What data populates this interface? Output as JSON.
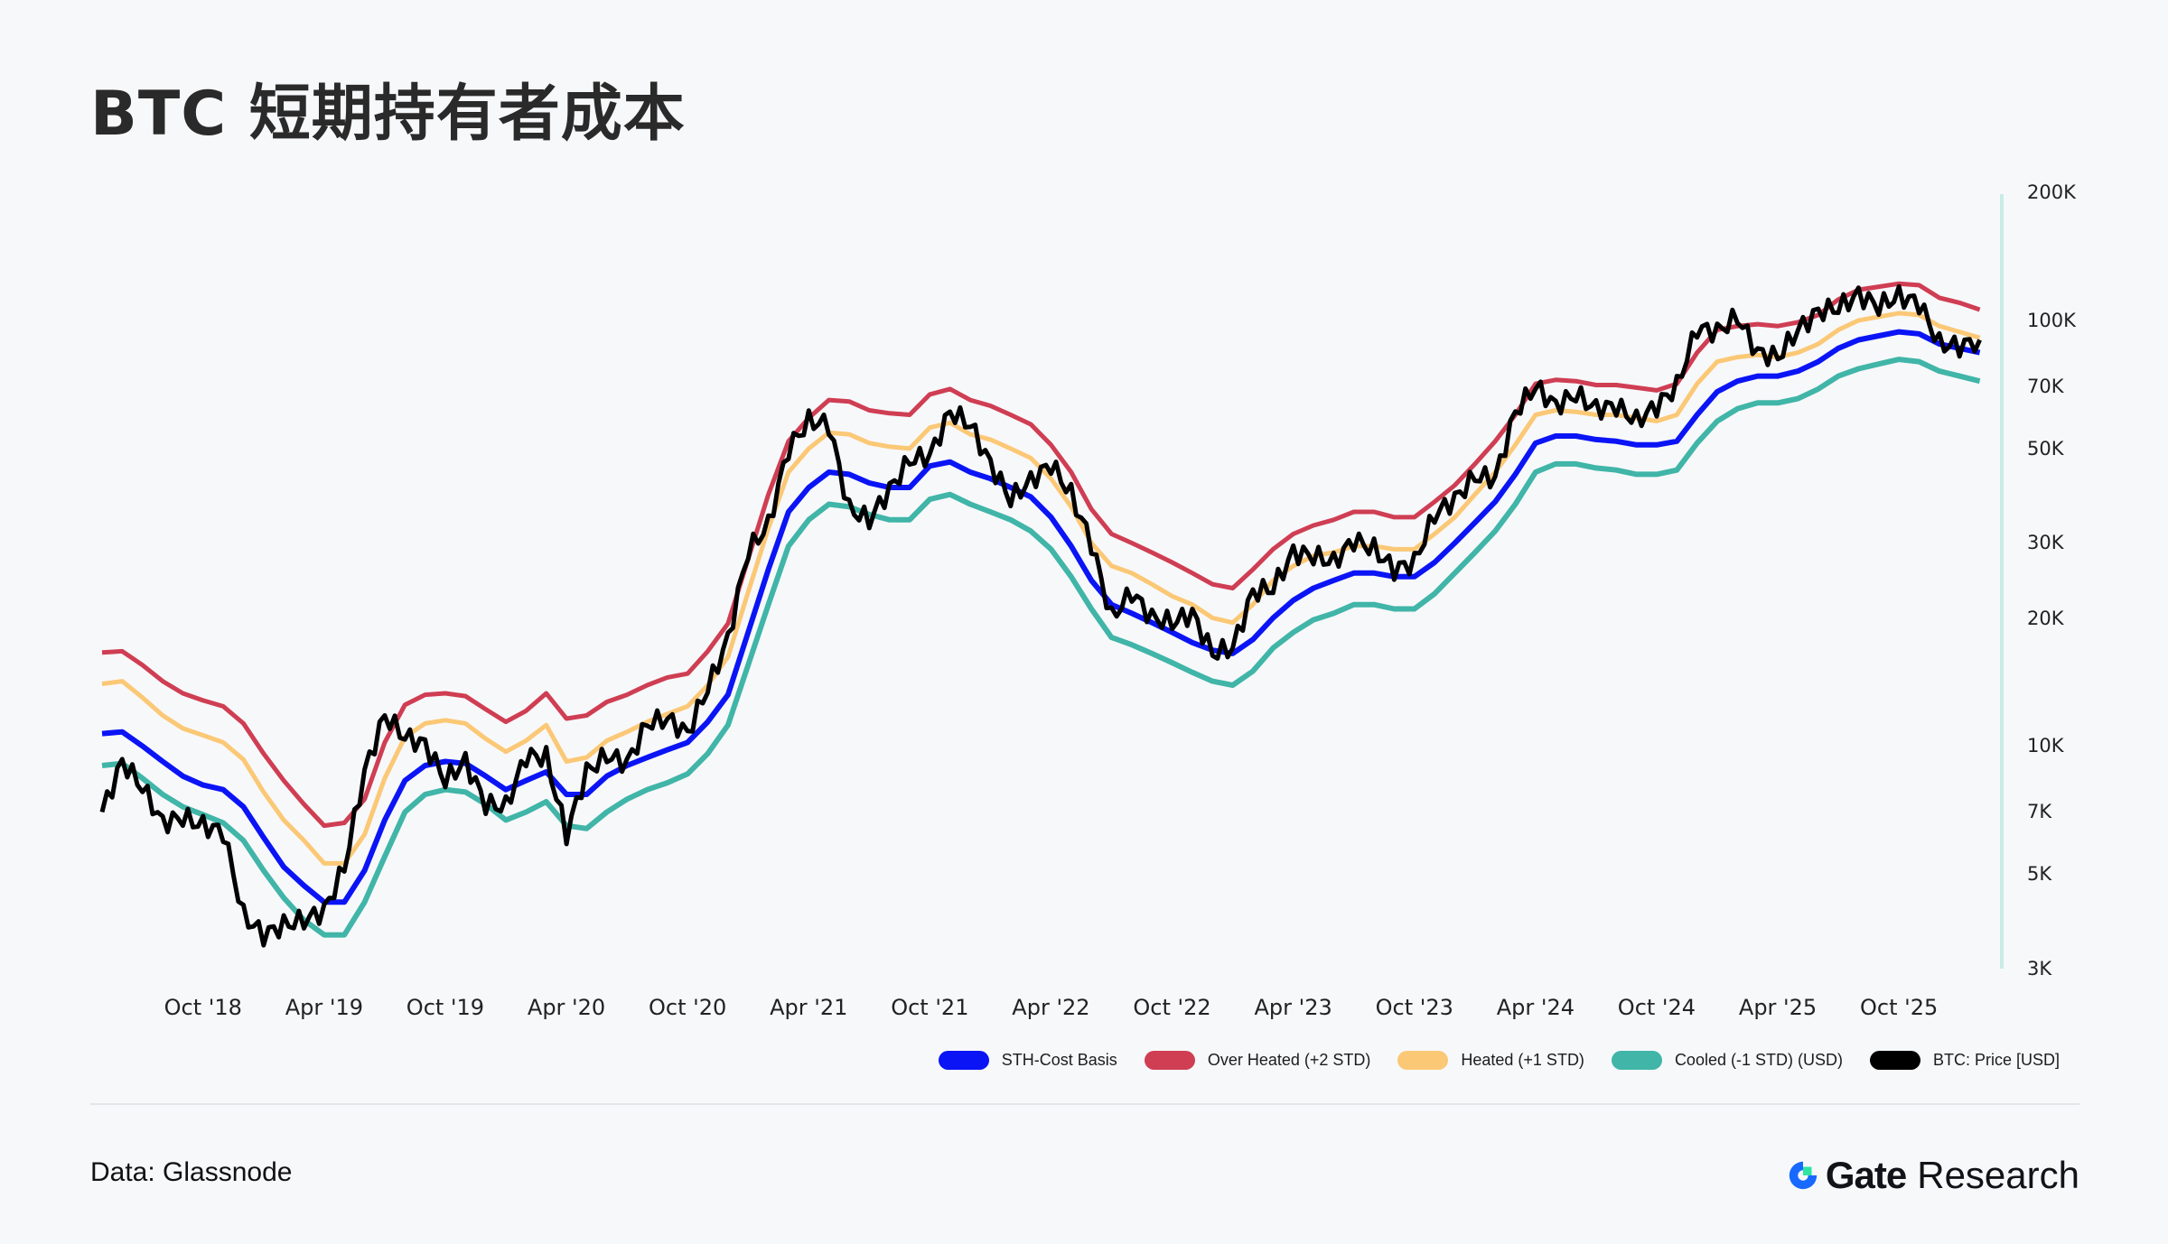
{
  "title": "BTC 短期持有者成本",
  "footer": {
    "source": "Data: Glassnode",
    "brand_name": "Gate",
    "brand_suffix": "Research"
  },
  "colors": {
    "background": "#f7f8fa",
    "sth_cost_basis": "#0a14f5",
    "over_heated": "#cf3e53",
    "heated": "#fbc876",
    "cooled": "#40b5a8",
    "price": "#000000",
    "axis_line": "#c9ece6",
    "brand_blue": "#1769ff",
    "brand_green": "#2ee6a0"
  },
  "legend": [
    {
      "key": "sth",
      "label": "STH-Cost Basis",
      "color": "#0a14f5"
    },
    {
      "key": "over",
      "label": "Over Heated (+2 STD)",
      "color": "#cf3e53"
    },
    {
      "key": "heated",
      "label": "Heated (+1 STD)",
      "color": "#fbc876"
    },
    {
      "key": "cooled",
      "label": "Cooled (-1 STD) (USD)",
      "color": "#40b5a8"
    },
    {
      "key": "price",
      "label": "BTC: Price [USD]",
      "color": "#000000"
    }
  ],
  "chart_data": {
    "type": "line",
    "title": "BTC 短期持有者成本",
    "xlabel": "",
    "ylabel": "",
    "y_scale": "log",
    "ylim": [
      3000,
      200000
    ],
    "y_axis_position": "right",
    "y_ticks": [
      {
        "label": "200K",
        "value": 200000
      },
      {
        "label": "100K",
        "value": 100000
      },
      {
        "label": "70K",
        "value": 70000
      },
      {
        "label": "50K",
        "value": 50000
      },
      {
        "label": "30K",
        "value": 30000
      },
      {
        "label": "20K",
        "value": 20000
      },
      {
        "label": "10K",
        "value": 10000
      },
      {
        "label": "7K",
        "value": 7000
      },
      {
        "label": "5K",
        "value": 5000
      },
      {
        "label": "3K",
        "value": 3000
      }
    ],
    "x_ticks": [
      "Oct '18",
      "Apr '19",
      "Oct '19",
      "Apr '20",
      "Oct '20",
      "Apr '21",
      "Oct '21",
      "Apr '22",
      "Oct '22",
      "Apr '23",
      "Oct '23",
      "Apr '24",
      "Oct '24",
      "Apr '25",
      "Oct '25"
    ],
    "x_tick_months": [
      5,
      11,
      17,
      23,
      29,
      35,
      41,
      47,
      53,
      59,
      65,
      71,
      77,
      83,
      89
    ],
    "grid": false,
    "legend_position": "bottom-right",
    "x_start": "May 2018",
    "x": [
      "2018-05",
      "2018-06",
      "2018-07",
      "2018-08",
      "2018-09",
      "2018-10",
      "2018-11",
      "2018-12",
      "2019-01",
      "2019-02",
      "2019-03",
      "2019-04",
      "2019-05",
      "2019-06",
      "2019-07",
      "2019-08",
      "2019-09",
      "2019-10",
      "2019-11",
      "2019-12",
      "2020-01",
      "2020-02",
      "2020-03",
      "2020-04",
      "2020-05",
      "2020-06",
      "2020-07",
      "2020-08",
      "2020-09",
      "2020-10",
      "2020-11",
      "2020-12",
      "2021-01",
      "2021-02",
      "2021-03",
      "2021-04",
      "2021-05",
      "2021-06",
      "2021-07",
      "2021-08",
      "2021-09",
      "2021-10",
      "2021-11",
      "2021-12",
      "2022-01",
      "2022-02",
      "2022-03",
      "2022-04",
      "2022-05",
      "2022-06",
      "2022-07",
      "2022-08",
      "2022-09",
      "2022-10",
      "2022-11",
      "2022-12",
      "2023-01",
      "2023-02",
      "2023-03",
      "2023-04",
      "2023-05",
      "2023-06",
      "2023-07",
      "2023-08",
      "2023-09",
      "2023-10",
      "2023-11",
      "2023-12",
      "2024-01",
      "2024-02",
      "2024-03",
      "2024-04",
      "2024-05",
      "2024-06",
      "2024-07",
      "2024-08",
      "2024-09",
      "2024-10",
      "2024-11",
      "2024-12",
      "2025-01",
      "2025-02",
      "2025-03",
      "2025-04",
      "2025-05",
      "2025-06",
      "2025-07",
      "2025-08",
      "2025-09",
      "2025-10",
      "2025-11",
      "2025-12",
      "2026-01",
      "2026-02"
    ],
    "series": [
      {
        "name": "Over Heated (+2 STD)",
        "color": "#cf3e53",
        "values": [
          16600,
          16700,
          15500,
          14200,
          13300,
          12800,
          12400,
          11300,
          9600,
          8300,
          7300,
          6500,
          6600,
          7500,
          10200,
          12500,
          13200,
          13300,
          13100,
          12200,
          11400,
          12100,
          13300,
          11600,
          11800,
          12700,
          13200,
          13900,
          14500,
          14800,
          16700,
          19400,
          27500,
          39000,
          52000,
          59000,
          65000,
          64500,
          61500,
          60500,
          60000,
          67000,
          69000,
          65000,
          63000,
          60000,
          57000,
          51000,
          44000,
          36000,
          31500,
          30000,
          28500,
          27000,
          25500,
          24000,
          23500,
          26000,
          29000,
          31500,
          33000,
          34000,
          35500,
          35500,
          34500,
          34500,
          37500,
          41000,
          46000,
          52000,
          60000,
          71000,
          72500,
          72000,
          70500,
          70500,
          69500,
          68500,
          71000,
          84000,
          95000,
          97000,
          98000,
          97000,
          99000,
          103000,
          112000,
          118000,
          120000,
          122000,
          121000,
          113000,
          110000,
          106000
        ]
      },
      {
        "name": "Heated (+1 STD)",
        "color": "#fbc876",
        "values": [
          14000,
          14200,
          13000,
          11800,
          11000,
          10600,
          10200,
          9300,
          7800,
          6700,
          6000,
          5300,
          5300,
          6200,
          8400,
          10500,
          11300,
          11500,
          11300,
          10400,
          9700,
          10300,
          11200,
          9200,
          9400,
          10300,
          10800,
          11400,
          11900,
          12400,
          13900,
          16200,
          23000,
          32500,
          44000,
          50000,
          54500,
          54000,
          51500,
          50500,
          50000,
          56000,
          57500,
          54000,
          52500,
          50000,
          47500,
          42500,
          36500,
          30000,
          26500,
          25500,
          24000,
          22500,
          21500,
          20000,
          19500,
          21500,
          24500,
          26500,
          28000,
          28500,
          29500,
          29500,
          29000,
          29000,
          31500,
          34500,
          39000,
          44000,
          51000,
          60000,
          61500,
          61000,
          60000,
          60000,
          59000,
          58000,
          60000,
          71000,
          80000,
          82000,
          83000,
          82000,
          84000,
          88000,
          95000,
          100000,
          102000,
          104000,
          103000,
          97000,
          94000,
          91000
        ]
      },
      {
        "name": "STH-Cost Basis",
        "color": "#0a14f5",
        "values": [
          10700,
          10800,
          10000,
          9200,
          8500,
          8100,
          7900,
          7200,
          6100,
          5200,
          4700,
          4300,
          4300,
          5100,
          6700,
          8300,
          9000,
          9200,
          9100,
          8500,
          7900,
          8300,
          8700,
          7700,
          7700,
          8500,
          9000,
          9400,
          9800,
          10200,
          11400,
          13200,
          18500,
          26000,
          35500,
          40500,
          44000,
          43500,
          41500,
          40500,
          40500,
          45500,
          46500,
          44000,
          42500,
          40500,
          38500,
          34500,
          29500,
          24500,
          21500,
          20500,
          19500,
          18500,
          17500,
          16800,
          16500,
          17800,
          20000,
          22000,
          23500,
          24500,
          25500,
          25500,
          25000,
          25000,
          27000,
          30000,
          33500,
          37500,
          43500,
          51500,
          53500,
          53500,
          52500,
          52000,
          51000,
          51000,
          52000,
          60000,
          68000,
          72000,
          74000,
          74000,
          76000,
          80000,
          86000,
          90000,
          92000,
          94000,
          93000,
          88000,
          86000,
          84000
        ]
      },
      {
        "name": "Cooled (-1 STD) (USD)",
        "color": "#40b5a8",
        "values": [
          9000,
          9100,
          8400,
          7700,
          7200,
          6900,
          6600,
          6000,
          5100,
          4400,
          3900,
          3600,
          3600,
          4300,
          5500,
          7000,
          7700,
          7900,
          7800,
          7300,
          6700,
          7000,
          7400,
          6500,
          6400,
          7000,
          7500,
          7900,
          8200,
          8600,
          9600,
          11200,
          15500,
          21500,
          29500,
          34000,
          37000,
          36500,
          35000,
          34000,
          34000,
          38000,
          39000,
          37000,
          35500,
          34000,
          32000,
          29000,
          25000,
          21000,
          18000,
          17300,
          16500,
          15700,
          14900,
          14200,
          13900,
          15000,
          17000,
          18500,
          19800,
          20500,
          21500,
          21500,
          21000,
          21000,
          22800,
          25500,
          28500,
          32000,
          37000,
          44000,
          46000,
          46000,
          45000,
          44500,
          43500,
          43500,
          44500,
          51500,
          58000,
          62000,
          64000,
          64000,
          65500,
          69000,
          74000,
          77000,
          79000,
          81000,
          80000,
          76000,
          74000,
          72000
        ]
      },
      {
        "name": "BTC: Price [USD]",
        "color": "#000000",
        "values": [
          7000,
          9200,
          8000,
          6600,
          6800,
          6500,
          6300,
          4000,
          3600,
          3800,
          3900,
          4100,
          5200,
          8700,
          11800,
          10500,
          10100,
          8300,
          9200,
          7300,
          7200,
          9500,
          9400,
          6200,
          8700,
          9500,
          9100,
          11300,
          11600,
          10700,
          13700,
          17800,
          28800,
          33000,
          50000,
          58000,
          57000,
          36000,
          34000,
          40000,
          47000,
          48000,
          61000,
          57000,
          46000,
          38000,
          42000,
          46000,
          39000,
          30000,
          20000,
          23000,
          20000,
          19500,
          20500,
          16500,
          17000,
          23000,
          23500,
          28500,
          28000,
          27000,
          30500,
          29000,
          26000,
          27000,
          35000,
          38000,
          43000,
          42500,
          61000,
          70000,
          63000,
          67000,
          62000,
          63000,
          58000,
          63000,
          70000,
          96000,
          94000,
          102000,
          84000,
          82000,
          95000,
          105000,
          107000,
          115000,
          108000,
          114000,
          110000,
          88000,
          87000,
          90000
        ]
      }
    ]
  }
}
